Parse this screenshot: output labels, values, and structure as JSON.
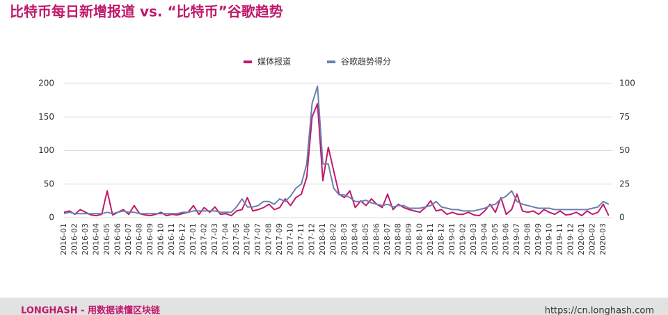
{
  "chart_data": {
    "type": "line",
    "title": "比特币每日新增报道 vs. “比特币”谷歌趋势",
    "categories": [
      "2016-01",
      null,
      "2016-02",
      null,
      "2016-03",
      null,
      "2016-04",
      null,
      "2016-05",
      null,
      "2016-06",
      null,
      "2016-07",
      null,
      "2016-08",
      null,
      "2016-09",
      null,
      "2016-10",
      null,
      "2016-11",
      null,
      "2016-12",
      null,
      "2017-01",
      null,
      "2017-02",
      null,
      "2017-03",
      null,
      "2017-04",
      null,
      "2017-05",
      null,
      "2017-06",
      null,
      "2017-07",
      null,
      "2017-08",
      null,
      "2017-09",
      null,
      "2017-10",
      null,
      "2017-11",
      null,
      "2017-12",
      null,
      "2018-01",
      null,
      "2018-02",
      null,
      "2018-03",
      null,
      "2018-04",
      null,
      "2018-05",
      null,
      "2018-06",
      null,
      "2018-07",
      null,
      "2018-08",
      null,
      "2018-09",
      null,
      "2018-10",
      null,
      "2018-11",
      null,
      "2018-12",
      null,
      "2019-01",
      null,
      "2019-02",
      null,
      "2019-03",
      null,
      "2019-04",
      null,
      "2019-05",
      null,
      "2019-06",
      null,
      "2019-07",
      null,
      "2019-08",
      null,
      "2019-09",
      null,
      "2019-10",
      null,
      "2019-11",
      null,
      "2019-12",
      null,
      "2020-01",
      null,
      "2020-02",
      null,
      "2020-03",
      null
    ],
    "series": [
      {
        "name": "媒体报道",
        "color": "#c0196b",
        "axis": "y",
        "values": [
          8,
          10,
          5,
          12,
          8,
          4,
          3,
          5,
          40,
          4,
          8,
          12,
          5,
          18,
          6,
          4,
          3,
          5,
          8,
          3,
          5,
          4,
          6,
          8,
          18,
          5,
          15,
          8,
          16,
          5,
          6,
          3,
          10,
          12,
          30,
          10,
          12,
          15,
          20,
          12,
          15,
          28,
          18,
          30,
          35,
          60,
          150,
          170,
          55,
          105,
          70,
          35,
          30,
          40,
          15,
          25,
          18,
          28,
          20,
          15,
          35,
          12,
          20,
          15,
          12,
          10,
          8,
          15,
          25,
          10,
          12,
          5,
          8,
          5,
          5,
          8,
          4,
          3,
          10,
          20,
          8,
          30,
          5,
          12,
          35,
          10,
          8,
          10,
          5,
          12,
          8,
          5,
          10,
          4,
          5,
          8,
          3,
          10,
          5,
          8,
          20,
          3
        ]
      },
      {
        "name": "谷歌趋势得分",
        "color": "#6a7fae",
        "axis": "y2",
        "values": [
          3,
          4,
          3,
          3,
          3,
          3,
          3,
          3,
          4,
          3,
          4,
          5,
          4,
          4,
          3,
          3,
          3,
          3,
          3,
          3,
          3,
          3,
          4,
          4,
          5,
          5,
          5,
          5,
          5,
          4,
          4,
          4,
          8,
          14,
          8,
          8,
          9,
          12,
          12,
          10,
          14,
          12,
          16,
          22,
          25,
          40,
          85,
          98,
          40,
          40,
          22,
          17,
          17,
          15,
          12,
          12,
          13,
          11,
          10,
          9,
          10,
          8,
          9,
          9,
          7,
          7,
          7,
          8,
          9,
          12,
          8,
          7,
          6,
          6,
          5,
          5,
          5,
          6,
          7,
          9,
          10,
          14,
          16,
          20,
          12,
          10,
          9,
          8,
          7,
          7,
          7,
          6,
          6,
          6,
          6,
          6,
          6,
          6,
          7,
          8,
          12,
          10
        ]
      }
    ],
    "ylim": [
      0,
      200
    ],
    "yticks": [
      0,
      50,
      100,
      150,
      200
    ],
    "y2lim": [
      0,
      100
    ],
    "y2ticks": [
      0,
      25,
      50,
      75,
      100
    ],
    "grid": true,
    "legend": "top"
  },
  "footer": {
    "brand": "LONGHASH - 用数据读懂区块链",
    "url": "https://cn.longhash.com"
  }
}
